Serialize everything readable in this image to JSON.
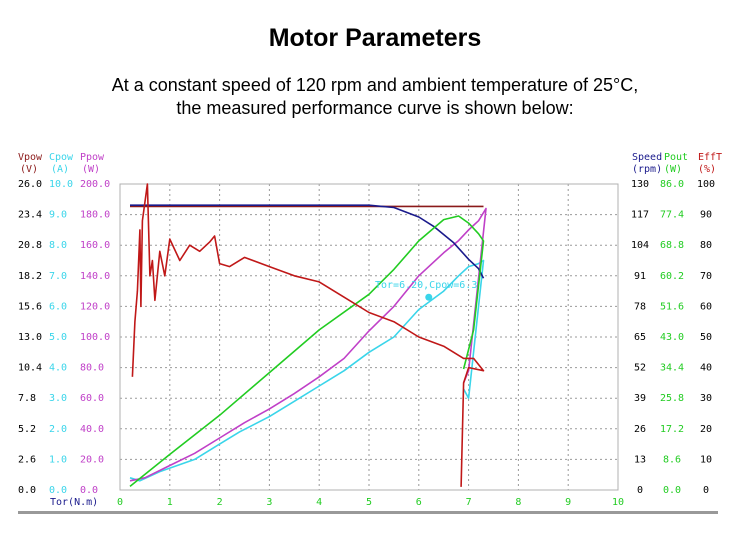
{
  "title": "Motor Parameters",
  "subtitle_line1": "At a constant speed of 120 rpm and ambient temperature of 25°C,",
  "subtitle_line2": "the measured performance curve is shown below:",
  "colors": {
    "vpow": "#8b1a1a",
    "cpow": "#3ad5ea",
    "ppow": "#c040c8",
    "speed": "#1a1a8c",
    "pout": "#22cc22",
    "efft": "#c01818",
    "grid": "#9a9a9a",
    "axis": "#000000"
  },
  "chart_data": {
    "type": "line",
    "xlabel": "Tor(N.m)",
    "xlim": [
      0,
      10
    ],
    "x_ticks": [
      "0",
      "1",
      "2",
      "3",
      "4",
      "5",
      "6",
      "7",
      "8",
      "9",
      "10"
    ],
    "left_axes": [
      {
        "key": "vpow",
        "name": "Vpow",
        "unit": "(V)",
        "range": [
          0,
          26
        ],
        "ticks": [
          "0.0",
          "2.6",
          "5.2",
          "7.8",
          "10.4",
          "13.0",
          "15.6",
          "18.2",
          "20.8",
          "23.4",
          "26.0"
        ]
      },
      {
        "key": "cpow",
        "name": "Cpow",
        "unit": "(A)",
        "range": [
          0,
          10
        ],
        "ticks": [
          "0.0",
          "1.0",
          "2.0",
          "3.0",
          "4.0",
          "5.0",
          "6.0",
          "7.0",
          "8.0",
          "9.0",
          "10.0"
        ]
      },
      {
        "key": "ppow",
        "name": "Ppow",
        "unit": "(W)",
        "range": [
          0,
          200
        ],
        "ticks": [
          "0.0",
          "20.0",
          "40.0",
          "60.0",
          "80.0",
          "100.0",
          "120.0",
          "140.0",
          "160.0",
          "180.0",
          "200.0"
        ]
      }
    ],
    "right_axes": [
      {
        "key": "speed",
        "name": "Speed",
        "unit": "(rpm)",
        "range": [
          0,
          130
        ],
        "ticks": [
          "0",
          "13",
          "26",
          "39",
          "52",
          "65",
          "78",
          "91",
          "104",
          "117",
          "130"
        ]
      },
      {
        "key": "pout",
        "name": "Pout",
        "unit": "(W)",
        "range": [
          0,
          86
        ],
        "ticks": [
          "0.0",
          "8.6",
          "17.2",
          "25.8",
          "34.4",
          "43.0",
          "51.6",
          "60.2",
          "68.8",
          "77.4",
          "86.0"
        ]
      },
      {
        "key": "efft",
        "name": "EffT",
        "unit": "(%)",
        "range": [
          0,
          100
        ],
        "ticks": [
          "0",
          "10",
          "20",
          "30",
          "40",
          "50",
          "60",
          "70",
          "80",
          "90",
          "100"
        ]
      }
    ],
    "grid": true,
    "cursor": {
      "label": "Tor=6.20,Cpow=6.3",
      "x": 6.2,
      "y": 6.3,
      "axis": "cpow"
    },
    "series": [
      {
        "key": "vpow",
        "axis": "vpow",
        "x": [
          0.2,
          2,
          4,
          6,
          6.8,
          7.2,
          7.3
        ],
        "y": [
          24.1,
          24.1,
          24.1,
          24.1,
          24.1,
          24.1,
          24.1
        ]
      },
      {
        "key": "cpow",
        "axis": "cpow",
        "x": [
          0.2,
          0.4,
          0.8,
          1.5,
          2,
          2.4,
          3,
          3.5,
          4,
          4.5,
          5,
          5.5,
          6,
          6.5,
          6.8,
          7.0,
          7.2,
          7.3,
          7.0,
          6.9
        ],
        "y": [
          0.4,
          0.3,
          0.6,
          1.0,
          1.5,
          1.9,
          2.4,
          2.9,
          3.4,
          3.9,
          4.5,
          5.0,
          5.9,
          6.5,
          7.0,
          7.3,
          7.4,
          7.5,
          3.0,
          3.3
        ]
      },
      {
        "key": "ppow",
        "axis": "ppow",
        "x": [
          0.2,
          0.5,
          1,
          1.5,
          2,
          2.5,
          3,
          3.5,
          4,
          4.5,
          5,
          5.5,
          6,
          6.5,
          6.8,
          7.0,
          7.2,
          7.35,
          7.0,
          6.9
        ],
        "y": [
          6,
          8,
          16,
          24,
          34,
          44,
          53,
          63,
          74,
          86,
          104,
          120,
          140,
          155,
          163,
          170,
          176,
          184,
          78,
          70
        ]
      },
      {
        "key": "speed",
        "axis": "speed",
        "x": [
          0.2,
          1,
          2,
          3,
          4,
          4.5,
          5,
          5.5,
          6,
          6.3,
          6.7,
          7.0,
          7.2,
          7.3
        ],
        "y": [
          121,
          121,
          121,
          121,
          121,
          121,
          121,
          120,
          116,
          112,
          105,
          98,
          94,
          90
        ]
      },
      {
        "key": "pout",
        "axis": "pout",
        "x": [
          0.2,
          1,
          2,
          3,
          4,
          5,
          5.5,
          6,
          6.5,
          6.8,
          7.0,
          7.2,
          7.3,
          7.1,
          6.9
        ],
        "y": [
          1,
          10,
          21,
          33,
          45,
          55,
          62,
          70,
          76,
          77,
          75,
          72,
          70,
          45,
          34
        ]
      },
      {
        "key": "efft",
        "axis": "efft",
        "x": [
          0.25,
          0.3,
          0.35,
          0.4,
          0.42,
          0.45,
          0.5,
          0.55,
          0.6,
          0.65,
          0.7,
          0.8,
          0.9,
          1.0,
          1.2,
          1.4,
          1.6,
          1.8,
          1.9,
          2.0,
          2.2,
          2.5,
          3,
          3.5,
          4,
          4.5,
          5,
          5.5,
          6,
          6.5,
          6.9,
          7.1,
          7.3,
          7.0,
          6.9,
          6.85
        ],
        "y": [
          37,
          55,
          65,
          85,
          60,
          88,
          94,
          100,
          70,
          75,
          62,
          78,
          70,
          82,
          75,
          80,
          78,
          81,
          83,
          74,
          73,
          76,
          73,
          70,
          68,
          63,
          58,
          55,
          50,
          47,
          43,
          43,
          39,
          40,
          35,
          1
        ]
      }
    ]
  }
}
